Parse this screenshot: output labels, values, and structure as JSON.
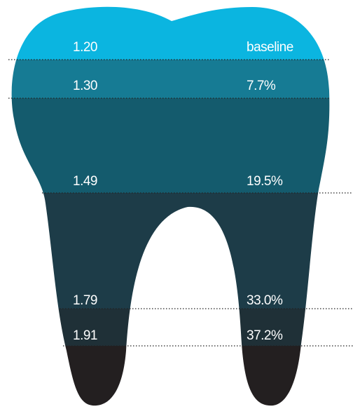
{
  "rows": [
    {
      "value": "1.20",
      "change": "baseline"
    },
    {
      "value": "1.30",
      "change": "7.7%"
    },
    {
      "value": "1.49",
      "change": "19.5%"
    },
    {
      "value": "1.79",
      "change": "33.0%"
    },
    {
      "value": "1.91",
      "change": "37.2%"
    }
  ]
}
